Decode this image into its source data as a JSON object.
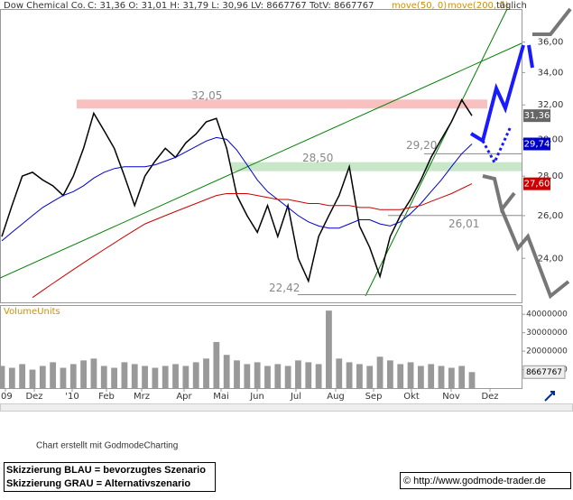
{
  "header": {
    "title": "Dow Chemical Co.",
    "quote": "C: 31,36 O: 31,01 H: 31,79 L: 30,96 LV: 8667767 TotV: 8667767",
    "ma50": "move(50, 0)",
    "ma200": "move(200, 0)",
    "period": "täglich"
  },
  "chart_data": [
    {
      "type": "line",
      "log_scale": true,
      "grid": false,
      "ylim": [
        22.1,
        38.3
      ],
      "yticks": [
        {
          "value": 24,
          "label": "24,00"
        },
        {
          "value": 26,
          "label": "26,00"
        },
        {
          "value": 28,
          "label": "28,00"
        },
        {
          "value": 30,
          "label": "30,00"
        },
        {
          "value": 32,
          "label": "32,00"
        },
        {
          "value": 34,
          "label": "34,00"
        },
        {
          "value": 36,
          "label": "36,00"
        }
      ],
      "xlabels": [
        "'09",
        "Dez",
        "'10",
        "Feb",
        "Mrz",
        "Apr",
        "Mai",
        "Jun",
        "Jul",
        "Aug",
        "Sep",
        "Okt",
        "Nov",
        "Dez"
      ],
      "series": [
        {
          "color": "#000000",
          "values": [
            25.0,
            26.5,
            28.0,
            28.2,
            27.8,
            27.5,
            27.0,
            28.0,
            29.5,
            31.5,
            30.5,
            29.5,
            28.0,
            26.5,
            28.0,
            28.8,
            29.5,
            29.0,
            29.8,
            30.3,
            31.0,
            31.2,
            29.5,
            27.0,
            26.0,
            25.2,
            26.5,
            25.0,
            26.5,
            24.0,
            23.0,
            25.0,
            26.0,
            27.0,
            28.5,
            25.5,
            24.5,
            23.2,
            25.0,
            26.0,
            26.8,
            27.8,
            29.0,
            30.0,
            31.0,
            32.3,
            31.36
          ]
        },
        {
          "color": "#0000cc",
          "values": [
            24.8,
            25.2,
            25.6,
            26.0,
            26.4,
            26.7,
            27.0,
            27.2,
            27.5,
            27.9,
            28.2,
            28.4,
            28.5,
            28.5,
            28.5,
            28.6,
            28.8,
            29.0,
            29.3,
            29.6,
            29.9,
            30.1,
            30.0,
            29.4,
            28.6,
            27.8,
            27.2,
            26.8,
            26.4,
            26.0,
            25.7,
            25.5,
            25.4,
            25.4,
            25.6,
            25.8,
            25.8,
            25.6,
            25.5,
            25.7,
            26.1,
            26.6,
            27.2,
            27.8,
            28.5,
            29.2,
            29.74
          ]
        },
        {
          "color": "#cc0000",
          "values": [
            null,
            null,
            null,
            22.3,
            22.6,
            22.9,
            23.2,
            23.5,
            23.8,
            24.1,
            24.4,
            24.7,
            25.0,
            25.3,
            25.6,
            25.8,
            26.0,
            26.2,
            26.4,
            26.6,
            26.8,
            27.0,
            27.1,
            27.1,
            27.1,
            27.0,
            26.9,
            26.8,
            26.8,
            26.7,
            26.6,
            26.6,
            26.5,
            26.5,
            26.5,
            26.4,
            26.4,
            26.3,
            26.3,
            26.3,
            26.4,
            26.5,
            26.7,
            26.9,
            27.1,
            27.35,
            27.6
          ]
        }
      ],
      "last_labels": [
        {
          "value": 31.36,
          "label": "31,36",
          "color": "#666666"
        },
        {
          "value": 29.74,
          "label": "29,74",
          "color": "#0000cc"
        },
        {
          "value": 27.6,
          "label": "27,60",
          "color": "#cc0000"
        }
      ],
      "levels": [
        {
          "value": 32.05,
          "label": "32,05",
          "band": true,
          "color": "#f9c0c0"
        },
        {
          "value": 28.5,
          "label": "28,50",
          "band": true,
          "color": "#c8e6c8"
        },
        {
          "value": 29.2,
          "label": "29,20",
          "band": false,
          "color": "#888888"
        },
        {
          "value": 26.01,
          "label": "26,01",
          "band": false,
          "color": "#888888"
        },
        {
          "value": 22.42,
          "label": "22,42",
          "band": false,
          "color": "#888888"
        }
      ]
    },
    {
      "type": "bar",
      "title": "VolumeUnits",
      "color": "#999999",
      "ylim": [
        0,
        45000000
      ],
      "yticks": [
        10000000,
        20000000,
        30000000,
        40000000
      ],
      "values": [
        12000000,
        11000000,
        13000000,
        10000000,
        12000000,
        14000000,
        11000000,
        13000000,
        15000000,
        16000000,
        12000000,
        11000000,
        14000000,
        13000000,
        12000000,
        11000000,
        12000000,
        13000000,
        12000000,
        14000000,
        16000000,
        25000000,
        18000000,
        15000000,
        13000000,
        14000000,
        12000000,
        13000000,
        12000000,
        15000000,
        14000000,
        13000000,
        42000000,
        16000000,
        14000000,
        13000000,
        12000000,
        17000000,
        15000000,
        13000000,
        14000000,
        12000000,
        13000000,
        12000000,
        11000000,
        12000000,
        8667767
      ]
    }
  ],
  "footer": {
    "credit": "Chart erstellt mit GodmodeCharting",
    "blue": "Skizzierung BLAU = bevorzugtes Szenario",
    "grey": "Skizzierung GRAU = Alternativszenario",
    "site": "© http://www.godmode-trader.de"
  }
}
